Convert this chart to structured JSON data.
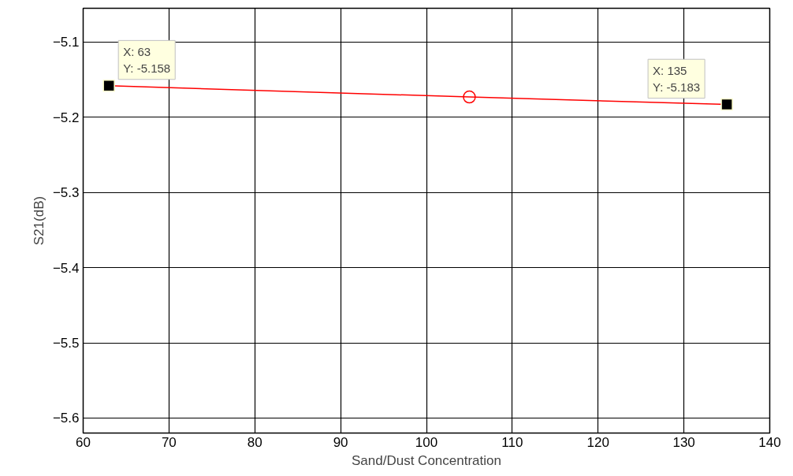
{
  "chart_data": {
    "type": "line",
    "xlabel": "Sand/Dust Concentration",
    "ylabel": "S21(dB)",
    "series": [
      {
        "color": "#ff0000",
        "x": [
          63,
          105,
          135
        ],
        "values": [
          -5.158,
          -5.173,
          -5.183
        ]
      },
      {
        "type": "scatter",
        "color": "#ff0000",
        "x": [
          105
        ],
        "values": [
          -5.173
        ],
        "marker": "circle"
      }
    ],
    "xlim": [
      60,
      140
    ],
    "xticks": [
      60,
      70,
      80,
      90,
      100,
      110,
      120,
      130,
      140
    ],
    "ylim": [
      -5.62,
      -5.055
    ],
    "yticks": [
      -5.6,
      -5.5,
      -5.4,
      -5.3,
      -5.2,
      -5.1
    ],
    "grid": true,
    "annotations": [
      {
        "text": "X: 63\nY: -5.158",
        "x": 63,
        "y": -5.158
      },
      {
        "text": "X: 135\nY: -5.183",
        "x": 135,
        "y": -5.183
      }
    ]
  }
}
